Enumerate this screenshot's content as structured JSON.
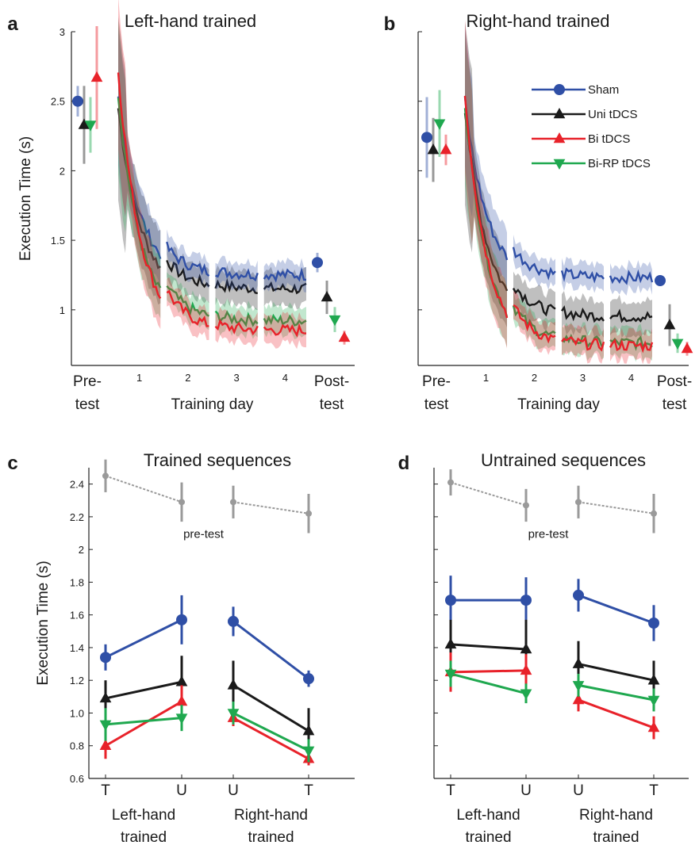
{
  "colors": {
    "sham": "#2f4fa6",
    "uni": "#1a1a1a",
    "bi": "#e8222a",
    "birp": "#1fa84f",
    "pretest": "#9a9a9a"
  },
  "legend": [
    {
      "key": "sham",
      "label": "Sham",
      "marker": "circle"
    },
    {
      "key": "uni",
      "label": "Uni tDCS",
      "marker": "triangle-up"
    },
    {
      "key": "bi",
      "label": "Bi tDCS",
      "marker": "triangle-up"
    },
    {
      "key": "birp",
      "label": "Bi-RP tDCS",
      "marker": "triangle-down"
    }
  ],
  "chart_data": [
    {
      "panel": "a",
      "type": "line",
      "title": "Left-hand trained",
      "ylabel": "Execution Time (s)",
      "xlabel": "Training day",
      "ylim": [
        0.6,
        3.0
      ],
      "yticks": [
        "1",
        "1.5",
        "2",
        "2.5",
        "3"
      ],
      "xticks": [
        "1",
        "2",
        "3",
        "4"
      ],
      "xlabels_left": [
        "Pre-",
        "test"
      ],
      "xlabels_right": [
        "Post-",
        "test"
      ],
      "pre": {
        "sham": [
          2.5,
          0.11
        ],
        "uni": [
          2.33,
          0.28
        ],
        "bi": [
          2.67,
          0.37
        ],
        "birp": [
          2.33,
          0.2
        ]
      },
      "post": {
        "sham": [
          1.34,
          0.07
        ],
        "uni": [
          1.09,
          0.12
        ],
        "bi": [
          0.8,
          0.05
        ],
        "birp": [
          0.93,
          0.09
        ]
      },
      "training_start": {
        "sham": 2.5,
        "uni": 2.45,
        "bi": 2.72,
        "birp": 2.55
      },
      "training_end": {
        "sham": 1.2,
        "uni": 1.1,
        "bi": 0.8,
        "birp": 0.87
      }
    },
    {
      "panel": "b",
      "type": "line",
      "title": "Right-hand trained",
      "xlabel": "Training day",
      "ylim": [
        0.6,
        3.0
      ],
      "xticks": [
        "1",
        "2",
        "3",
        "4"
      ],
      "xlabels_left": [
        "Pre-",
        "test"
      ],
      "xlabels_right": [
        "Post-",
        "test"
      ],
      "pre": {
        "sham": [
          2.24,
          0.29
        ],
        "uni": [
          2.15,
          0.23
        ],
        "bi": [
          2.15,
          0.11
        ],
        "birp": [
          2.34,
          0.24
        ]
      },
      "post": {
        "sham": [
          1.21,
          0.04
        ],
        "uni": [
          0.89,
          0.15
        ],
        "bi": [
          0.72,
          0.05
        ],
        "birp": [
          0.76,
          0.07
        ]
      },
      "training_start": {
        "sham": 2.5,
        "uni": 2.45,
        "bi": 2.55,
        "birp": 2.48
      },
      "training_end": {
        "sham": 1.18,
        "uni": 0.9,
        "bi": 0.69,
        "birp": 0.71
      }
    },
    {
      "panel": "c",
      "type": "line",
      "title": "Trained sequences",
      "ylabel": "Execution Time  (s)",
      "ylim": [
        0.6,
        2.5
      ],
      "yticks": [
        "0.6",
        "0.8",
        "1.0",
        "1.2",
        "1.4",
        "1.6",
        "1.8",
        "2",
        "2.2",
        "2.4"
      ],
      "categories": [
        "T",
        "U",
        "U",
        "T"
      ],
      "groups": [
        [
          "Left-hand",
          "trained"
        ],
        [
          "Right-hand",
          "trained"
        ]
      ],
      "annotation": "pre-test",
      "series": [
        {
          "key": "pretest",
          "values": [
            2.45,
            2.29,
            2.29,
            2.22
          ],
          "err": [
            0.1,
            0.12,
            0.1,
            0.12
          ]
        },
        {
          "key": "sham",
          "values": [
            1.34,
            1.57,
            1.56,
            1.21
          ],
          "err": [
            0.08,
            0.15,
            0.09,
            0.05
          ]
        },
        {
          "key": "uni",
          "values": [
            1.09,
            1.19,
            1.17,
            0.89
          ],
          "err": [
            0.11,
            0.16,
            0.15,
            0.14
          ]
        },
        {
          "key": "bi",
          "values": [
            0.8,
            1.07,
            0.97,
            0.72
          ],
          "err": [
            0.08,
            0.1,
            0.05,
            0.04
          ]
        },
        {
          "key": "birp",
          "values": [
            0.93,
            0.97,
            1.0,
            0.77
          ],
          "err": [
            0.1,
            0.08,
            0.07,
            0.07
          ]
        }
      ]
    },
    {
      "panel": "d",
      "type": "line",
      "title": "Untrained sequences",
      "ylim": [
        0.6,
        2.5
      ],
      "categories": [
        "T",
        "U",
        "U",
        "T"
      ],
      "groups": [
        [
          "Left-hand",
          "trained"
        ],
        [
          "Right-hand",
          "trained"
        ]
      ],
      "annotation": "pre-test",
      "series": [
        {
          "key": "pretest",
          "values": [
            2.41,
            2.27,
            2.29,
            2.22
          ],
          "err": [
            0.08,
            0.1,
            0.1,
            0.12
          ]
        },
        {
          "key": "sham",
          "values": [
            1.69,
            1.69,
            1.72,
            1.55
          ],
          "err": [
            0.15,
            0.14,
            0.1,
            0.11
          ]
        },
        {
          "key": "uni",
          "values": [
            1.42,
            1.39,
            1.3,
            1.2
          ],
          "err": [
            0.15,
            0.18,
            0.14,
            0.12
          ]
        },
        {
          "key": "bi",
          "values": [
            1.25,
            1.26,
            1.08,
            0.91
          ],
          "err": [
            0.12,
            0.1,
            0.07,
            0.07
          ]
        },
        {
          "key": "birp",
          "values": [
            1.24,
            1.12,
            1.17,
            1.08
          ],
          "err": [
            0.08,
            0.06,
            0.07,
            0.07
          ]
        }
      ]
    }
  ]
}
